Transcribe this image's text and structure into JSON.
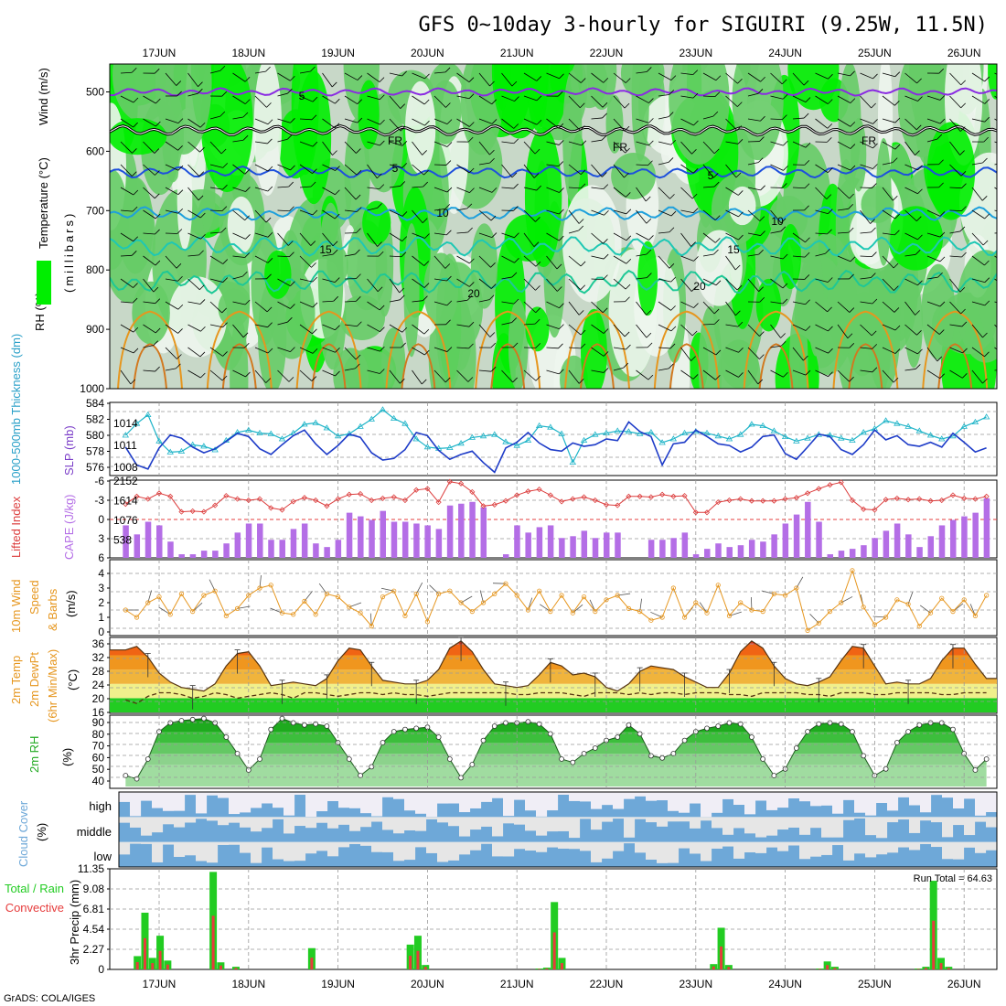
{
  "title": "GFS 0~10day 3-hourly for SIGUIRI (9.25W, 11.5N)",
  "footer": "GrADS: COLA/IGES",
  "days": [
    "17JUN",
    "18JUN",
    "19JUN",
    "20JUN",
    "21JUN",
    "22JUN",
    "23JUN",
    "24JUN",
    "25JUN",
    "26JUN"
  ],
  "colors": {
    "rh_light": "#c8d8c8",
    "rh_mid": "#66cc66",
    "rh_bright": "#00ee00",
    "purple": "#8a2be2",
    "blue": "#1e50dc",
    "cyan": "#1ea0dc",
    "teal": "#1ec8b4",
    "orange": "#e6961e",
    "magenta": "#d2006e",
    "thick": "#1e3cc8",
    "slp": "#1eb4c8",
    "cape": "#b46ee6",
    "li": "#dc3c3c",
    "wind": "#e6961e",
    "rh2m": "#22cc22",
    "cloud": "#6ea8d8",
    "cloud_bg": "#e6e6e6",
    "rain_total": "#22cc22",
    "rain_conv": "#e63c3c"
  },
  "panels": {
    "upper": {
      "ylabels": [
        "RH (%)",
        "Temperature (°C)",
        "Wind (m/s)"
      ],
      "yunit": "(millibars)",
      "ticks": [
        "500",
        "600",
        "700",
        "800",
        "900",
        "1000"
      ],
      "contour_labels": [
        "5",
        "FR",
        "FR",
        "FR",
        "5",
        "5",
        "10",
        "10",
        "15",
        "15",
        "20",
        "20"
      ]
    },
    "thickness": {
      "ylabel_left": "1000-500mb Thickness (dm)",
      "ylabel_right": "SLP (mb)",
      "left_ticks": [
        "584",
        "582",
        "580",
        "578",
        "576"
      ],
      "right_ticks": [
        "1014",
        "1011",
        "1008"
      ]
    },
    "cape": {
      "ylabel_left": "Lifted Index",
      "ylabel_right": "CAPE (J/kg)",
      "left_ticks": [
        "-6",
        "-3",
        "0",
        "3",
        "6"
      ],
      "right_ticks": [
        "2152",
        "1614",
        "1076",
        "538"
      ]
    },
    "wind10": {
      "ylabel1": "10m Wind",
      "ylabel2": "Speed",
      "ylabel3": "& Barbs",
      "unit": "(m/s)",
      "ticks": [
        "4",
        "3",
        "2",
        "1",
        "0"
      ]
    },
    "temp2m": {
      "ylabel1": "2m Temp",
      "ylabel2": "2m DewPt",
      "ylabel3": "(6hr Min/Max)",
      "unit": "(°C)",
      "ticks": [
        "36",
        "32",
        "28",
        "24",
        "20",
        "16"
      ]
    },
    "rh2m": {
      "ylabel": "2m RH",
      "unit": "(%)",
      "ticks": [
        "90",
        "80",
        "70",
        "60",
        "50",
        "40"
      ]
    },
    "cloud": {
      "ylabel": "Cloud Cover",
      "unit": "(%)",
      "levels": [
        "high",
        "middle",
        "low"
      ]
    },
    "precip": {
      "ylabel1": "Total / Rain",
      "ylabel2": "Convective",
      "ylabel3": "3hr Precip (mm)",
      "ticks": [
        "11.35",
        "9.08",
        "6.81",
        "4.54",
        "2.27",
        "0"
      ],
      "run_total": "Run Total = 64.63"
    }
  },
  "chart_data": [
    {
      "type": "line",
      "name": "1000-500mb Thickness (dm)",
      "x_start": "16JUN 15Z",
      "step_hours": 3,
      "ylim": [
        575,
        584
      ],
      "values": [
        578.5,
        576.3,
        575.8,
        578.4,
        580.0,
        579.6,
        578.5,
        577.8,
        578.3,
        579.2,
        580.2,
        579.8,
        578.3,
        577.6,
        578.8,
        579.9,
        580.6,
        578.9,
        577.6,
        578.7,
        580.1,
        579.7,
        577.8,
        576.9,
        577.1,
        578.2,
        580.3,
        579.9,
        578.1,
        577.0,
        577.6,
        578.0,
        576.6,
        575.4,
        578.4,
        579.1,
        580.3,
        579.0,
        578.2,
        578.0,
        579.0,
        578.6,
        578.8,
        579.5,
        579.3,
        581.6,
        580.4,
        579.8,
        576.3,
        578.9,
        579.1,
        580.6,
        579.8,
        578.9,
        578.7,
        577.9,
        578.5,
        579.8,
        580.0,
        577.7,
        577.0,
        578.5,
        580.1,
        579.8,
        578.2,
        577.6,
        578.8,
        580.6,
        579.4,
        579.9,
        578.8,
        578.6,
        579.1,
        578.5,
        580.2,
        579.1,
        577.9,
        578.4,
        579.6,
        580.5,
        581.4,
        580.9,
        578.9,
        578.8,
        578.6,
        580.3,
        579.0,
        579.1,
        579.7,
        580.2,
        581.2,
        581.8,
        580.7,
        579.8,
        579.3,
        578.9,
        579.3,
        578.1,
        578.4,
        578.2
      ]
    },
    {
      "type": "line",
      "name": "SLP (mb)",
      "x_start": "16JUN 15Z",
      "step_hours": 3,
      "ylim": [
        1006.5,
        1016.5
      ],
      "values": [
        1012.0,
        1013.6,
        1014.8,
        1011.2,
        1009.7,
        1009.8,
        1010.7,
        1010.5,
        1010.0,
        1011.3,
        1012.4,
        1012.7,
        1012.3,
        1012.2,
        1011.5,
        1012.3,
        1013.5,
        1013.7,
        1013.0,
        1011.9,
        1012.2,
        1013.2,
        1014.2,
        1015.5,
        1014.3,
        1013.6,
        1011.5,
        1010.4,
        1010.2,
        1010.3,
        1010.9,
        1011.7,
        1011.9,
        1012.1,
        1011.1,
        1010.6,
        1011.3,
        1013.3,
        1013.1,
        1012.2,
        1008.3,
        1011.3,
        1012.1,
        1012.3,
        1012.6,
        1012.5,
        1012.2,
        1012.4,
        1011.0,
        1011.5,
        1012.3,
        1012.5,
        1012.3,
        1011.9,
        1011.5,
        1012.1,
        1013.5,
        1013.3,
        1012.6,
        1011.8,
        1011.2,
        1011.6,
        1012.1,
        1012.0,
        1011.6,
        1011.3,
        1012.4,
        1012.9,
        1014.0,
        1013.6,
        1013.2,
        1012.6,
        1012.0,
        1011.5,
        1011.9,
        1013.2,
        1013.8,
        1014.5,
        1013.6,
        1012.5,
        1010.9,
        1009.8,
        1010.4,
        1011.5,
        1012.9,
        1012.3,
        1011.2,
        1011.1,
        1011.3,
        1011.7
      ]
    },
    {
      "type": "bar",
      "name": "CAPE (J/kg)",
      "x_start": "16JUN 15Z",
      "step_hours": 3,
      "ylim": [
        0,
        2152
      ],
      "values": [
        900,
        650,
        1000,
        900,
        450,
        100,
        100,
        200,
        200,
        400,
        700,
        950,
        950,
        500,
        500,
        800,
        950,
        400,
        300,
        500,
        1250,
        1150,
        1050,
        1300,
        1000,
        1000,
        950,
        900,
        800,
        1450,
        1500,
        1550,
        1400,
        0,
        100,
        900,
        700,
        850,
        900,
        550,
        600,
        750,
        550,
        700,
        700,
        0,
        0,
        500,
        500,
        550,
        700,
        100,
        250,
        400,
        300,
        350,
        500,
        450,
        650,
        950,
        1200,
        1550,
        1000,
        100,
        200,
        250,
        350,
        550,
        750,
        950,
        650,
        300,
        600,
        900,
        1050,
        1150,
        1250,
        1650,
        1550,
        1550,
        1300,
        1250,
        800,
        250,
        650,
        1000,
        700,
        650,
        900,
        850,
        500,
        500,
        350,
        200
      ]
    },
    {
      "type": "line",
      "name": "Lifted Index",
      "x_start": "16JUN 15Z",
      "step_hours": 3,
      "ylim": [
        6,
        -6
      ],
      "values": [
        -2.4,
        -3.6,
        -3.2,
        -4.1,
        -3.6,
        -1.2,
        -1.3,
        -1.2,
        -2.2,
        -3.7,
        -3.2,
        -3.0,
        -3.2,
        -1.8,
        -1.5,
        -2.8,
        -3.4,
        -3.0,
        -2.1,
        -3.2,
        -3.9,
        -4.0,
        -3.0,
        -3.3,
        -3.5,
        -3.0,
        -4.6,
        -4.8,
        -2.7,
        -5.9,
        -5.6,
        -4.3,
        -2.1,
        -2.3,
        -2.9,
        -3.8,
        -4.4,
        -4.7,
        -3.8,
        -2.8,
        -3.2,
        -3.5,
        -3.0,
        -2.3,
        -2.2,
        -3.6,
        -3.6,
        -3.5,
        -3.9,
        -3.6,
        -3.7,
        -1.1,
        -1.1,
        -2.7,
        -3.0,
        -3.2,
        -2.9,
        -2.9,
        -2.9,
        -3.2,
        -3.4,
        -4.1,
        -4.8,
        -5.4,
        -5.8,
        -3.0,
        -1.6,
        -1.5,
        -3.1,
        -3.3,
        -3.1,
        -3.2,
        -2.9,
        -3.0,
        -3.8,
        -3.3,
        -3.2,
        -3.6,
        -4.5,
        -5.1,
        -4.8,
        -4.5,
        -4.3,
        -3.4,
        -3.1,
        -2.9,
        -3.1,
        -4.0,
        -3.7,
        -3.1,
        -2.5,
        -2.0,
        -1.6,
        -2.6,
        -3.0,
        -3.4,
        -3.5,
        -3.6,
        -3.3,
        -2.7
      ]
    },
    {
      "type": "line",
      "name": "10m Wind Speed (m/s)",
      "x_start": "16JUN 15Z",
      "step_hours": 3,
      "ylim": [
        0,
        4.5
      ],
      "values": [
        1.5,
        1.0,
        2.0,
        2.4,
        1.2,
        2.6,
        1.4,
        2.5,
        2.8,
        1.1,
        1.6,
        2.5,
        3.0,
        3.2,
        1.3,
        1.2,
        2.1,
        1.2,
        2.6,
        2.4,
        1.7,
        1.3,
        0.4,
        2.4,
        2.8,
        1.1,
        2.6,
        0.7,
        2.6,
        2.8,
        2.0,
        1.4,
        2.0,
        2.6,
        3.3,
        2.5,
        1.5,
        2.8,
        1.4,
        2.5,
        1.3,
        2.4,
        1.4,
        2.2,
        2.5,
        1.6,
        1.4,
        0.8,
        1.0,
        3.0,
        1.0,
        2.0,
        1.3,
        3.2,
        1.1,
        2.0,
        1.5,
        1.4,
        2.6,
        2.5,
        3.0,
        0.1,
        0.6,
        1.4,
        2.0,
        4.2,
        1.7,
        0.5,
        1.0,
        2.2,
        1.9,
        0.4,
        1.3,
        2.3,
        1.4,
        2.2,
        1.1,
        2.5,
        1.6,
        2.1,
        2.4,
        1.7,
        3.0,
        2.6,
        1.8,
        1.3,
        2.1,
        1.4,
        3.8,
        2.4,
        2.6,
        1.3,
        1.8,
        0.6,
        2.0,
        1.5,
        1.3,
        1.5,
        1.9,
        2.2
      ]
    },
    {
      "type": "area",
      "name": "2m Temp (°C)",
      "x_start": "16JUN 15Z",
      "step_hours": 3,
      "ylim": [
        16,
        37
      ],
      "values": [
        33.5,
        34.5,
        31.5,
        27.0,
        24.5,
        23.0,
        22.5,
        22.0,
        24.0,
        29.0,
        32.5,
        33.0,
        29.0,
        23.5,
        24.0,
        24.5,
        24.0,
        23.5,
        25.5,
        30.5,
        34.0,
        33.5,
        29.0,
        25.0,
        24.5,
        24.0,
        24.0,
        25.0,
        28.0,
        34.0,
        36.0,
        33.0,
        28.0,
        24.0,
        23.5,
        23.0,
        23.5,
        26.5,
        30.0,
        29.0,
        26.5,
        27.0,
        26.0,
        23.0,
        22.0,
        24.0,
        27.5,
        29.0,
        28.5,
        28.0,
        26.0,
        24.5,
        23.0,
        23.0,
        27.0,
        33.0,
        36.0,
        34.0,
        29.0,
        25.5,
        24.0,
        23.5,
        24.5,
        26.0,
        30.5,
        34.5,
        34.0,
        29.0,
        24.0,
        24.5,
        24.0,
        24.0,
        25.5,
        30.5,
        34.0,
        34.0,
        29.5,
        25.5,
        25.0,
        24.0,
        23.5,
        23.0,
        24.0,
        25.0,
        25.5,
        24.5,
        24.0,
        24.0,
        23.5,
        22.5
      ]
    },
    {
      "type": "line",
      "name": "2m DewPt (°C)",
      "x_start": "16JUN 15Z",
      "step_hours": 3,
      "ylim": [
        16,
        37
      ],
      "values": [
        19.5,
        18.5,
        20.5,
        21.5,
        21.5,
        21.0,
        20.0,
        20.5,
        21.5,
        21.0,
        20.0,
        20.5,
        21.0,
        21.5,
        21.0,
        20.0,
        21.5,
        21.5,
        21.0,
        20.5,
        21.0,
        21.5,
        21.5,
        21.0,
        21.5,
        21.0,
        21.0,
        20.5,
        21.0,
        21.5,
        21.5,
        21.5,
        21.5,
        21.5,
        21.5,
        21.0,
        21.0,
        21.5,
        21.5,
        21.5,
        21.0,
        20.5,
        21.5,
        21.5,
        21.5,
        21.0,
        21.5,
        21.0,
        21.5,
        21.5,
        21.0,
        21.5,
        21.5,
        21.5,
        21.0,
        21.0,
        20.5,
        21.5,
        21.5,
        21.5,
        21.5,
        21.0,
        21.0,
        20.5,
        21.5,
        21.5,
        21.5,
        21.0,
        21.0,
        21.5,
        21.5,
        21.5,
        21.5,
        21.0,
        21.0,
        21.5,
        21.5,
        21.5,
        21.0,
        21.5,
        21.5,
        21.5,
        21.5,
        21.5,
        21.5,
        21.0,
        21.0,
        21.0,
        21.0,
        21.0
      ]
    },
    {
      "type": "area",
      "name": "2m RH (%)",
      "x_start": "16JUN 15Z",
      "step_hours": 3,
      "ylim": [
        30,
        95
      ],
      "values": [
        40,
        37,
        55,
        80,
        88,
        90,
        91,
        92,
        88,
        75,
        60,
        45,
        55,
        82,
        92,
        88,
        86,
        87,
        85,
        70,
        55,
        40,
        48,
        70,
        80,
        82,
        83,
        84,
        75,
        55,
        38,
        50,
        72,
        85,
        88,
        88,
        89,
        87,
        78,
        55,
        52,
        60,
        65,
        72,
        75,
        86,
        78,
        58,
        56,
        60,
        72,
        80,
        83,
        85,
        88,
        87,
        75,
        55,
        40,
        46,
        65,
        80,
        87,
        88,
        87,
        80,
        58,
        40,
        46,
        70,
        80,
        86,
        88,
        88,
        82,
        60,
        45,
        55,
        75,
        78,
        82,
        84,
        86,
        86,
        86,
        87,
        88,
        88,
        89,
        90
      ]
    },
    {
      "type": "bar",
      "name": "3hr Precip Total (mm)",
      "x_start": "16JUN 15Z",
      "step_hours": 3,
      "ylim": [
        0,
        11.35
      ],
      "values": [
        0,
        0,
        0,
        1.5,
        6.4,
        1.3,
        3.8,
        1.0,
        0,
        0,
        0,
        0,
        0,
        11.0,
        0.8,
        0,
        0.3,
        0,
        0,
        0,
        0,
        0,
        0,
        0,
        0,
        0,
        2.4,
        0,
        0,
        0,
        0,
        0,
        0,
        0,
        0,
        0,
        0,
        0,
        0,
        2.8,
        3.8,
        0.5,
        0,
        0,
        0,
        0,
        0,
        0,
        0,
        0,
        0,
        0,
        0,
        0,
        0,
        0,
        0.1,
        0.2,
        7.6,
        1.3,
        0,
        0,
        0,
        0,
        0,
        0,
        0,
        0,
        0,
        0,
        0,
        0,
        0,
        0,
        0,
        0,
        0,
        0,
        0,
        0.6,
        4.7,
        0.5,
        0,
        0,
        0,
        0,
        0,
        0,
        0,
        0,
        0,
        0,
        0,
        0.1,
        0.9,
        0.3,
        0,
        0,
        0,
        0,
        0,
        0,
        0,
        0,
        0,
        0,
        0.1,
        0.3,
        10.0,
        1.3,
        0.3,
        0,
        0,
        0,
        0,
        0,
        0
      ]
    }
  ]
}
